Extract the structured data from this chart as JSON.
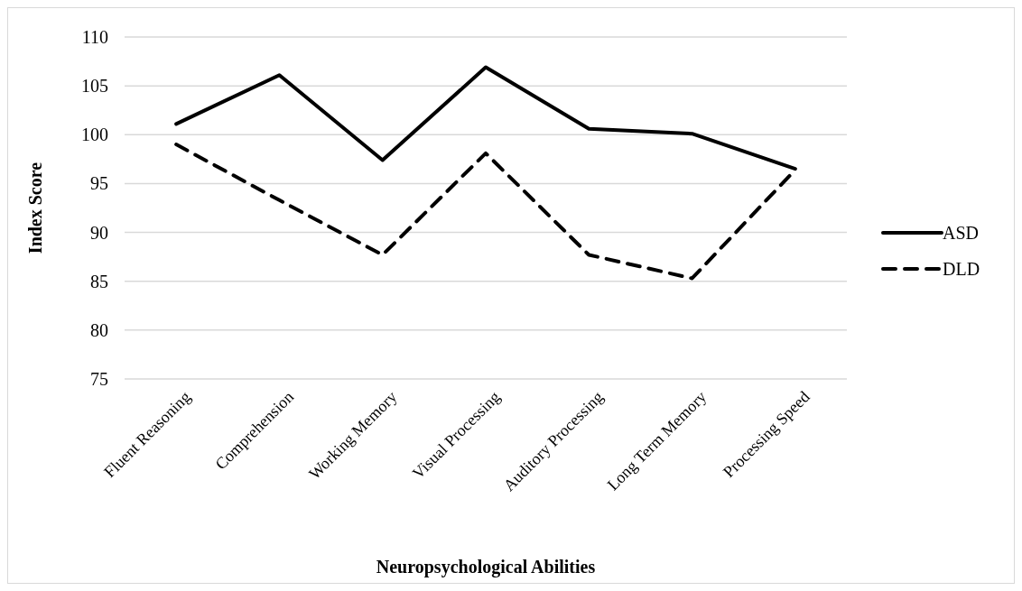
{
  "chart_data": {
    "type": "line",
    "xlabel": "Neuropsychological Abilities",
    "ylabel": "Index Score",
    "categories": [
      "Fluent Reasoning",
      "Comprehension",
      "Working Memory",
      "Visual Processing",
      "Auditory Processing",
      "Long Term Memory",
      "Processing Speed"
    ],
    "series": [
      {
        "name": "ASD",
        "color": "#000000",
        "line_style": "solid",
        "values": [
          101.1,
          106.1,
          97.4,
          106.9,
          100.6,
          100.1,
          96.5
        ]
      },
      {
        "name": "DLD",
        "color": "#000000",
        "line_style": "dashed",
        "values": [
          99.0,
          93.3,
          87.7,
          98.1,
          87.7,
          85.3,
          96.4
        ]
      }
    ],
    "ylim": [
      75,
      110
    ],
    "yticks": [
      75,
      80,
      85,
      90,
      95,
      100,
      105,
      110
    ],
    "grid": "y",
    "legend": "right",
    "marker": "none"
  }
}
